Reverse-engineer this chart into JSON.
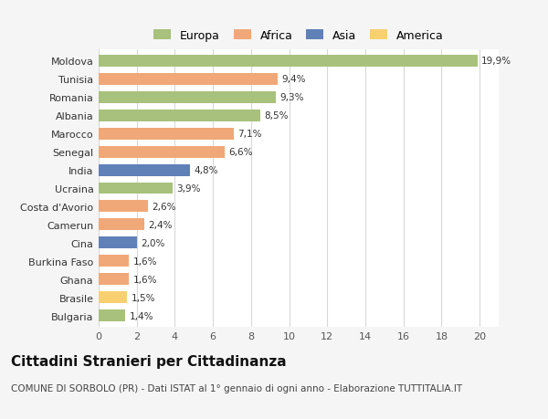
{
  "categories": [
    "Moldova",
    "Tunisia",
    "Romania",
    "Albania",
    "Marocco",
    "Senegal",
    "India",
    "Ucraina",
    "Costa d'Avorio",
    "Camerun",
    "Cina",
    "Burkina Faso",
    "Ghana",
    "Brasile",
    "Bulgaria"
  ],
  "values": [
    19.9,
    9.4,
    9.3,
    8.5,
    7.1,
    6.6,
    4.8,
    3.9,
    2.6,
    2.4,
    2.0,
    1.6,
    1.6,
    1.5,
    1.4
  ],
  "labels": [
    "19,9%",
    "9,4%",
    "9,3%",
    "8,5%",
    "7,1%",
    "6,6%",
    "4,8%",
    "3,9%",
    "2,6%",
    "2,4%",
    "2,0%",
    "1,6%",
    "1,6%",
    "1,5%",
    "1,4%"
  ],
  "colors": [
    "#a8c17c",
    "#f0a878",
    "#a8c17c",
    "#a8c17c",
    "#f0a878",
    "#f0a878",
    "#6080b8",
    "#a8c17c",
    "#f0a878",
    "#f0a878",
    "#6080b8",
    "#f0a878",
    "#f0a878",
    "#f8d070",
    "#a8c17c"
  ],
  "legend": {
    "Europa": "#a8c17c",
    "Africa": "#f0a878",
    "Asia": "#6080b8",
    "America": "#f8d070"
  },
  "xlim": [
    0,
    21
  ],
  "xticks": [
    0,
    2,
    4,
    6,
    8,
    10,
    12,
    14,
    16,
    18,
    20
  ],
  "title": "Cittadini Stranieri per Cittadinanza",
  "subtitle": "COMUNE DI SORBOLO (PR) - Dati ISTAT al 1° gennaio di ogni anno - Elaborazione TUTTITALIA.IT",
  "background_color": "#f5f5f5",
  "bar_background": "#ffffff",
  "grid_color": "#d8d8d8",
  "title_fontsize": 11,
  "subtitle_fontsize": 7.5,
  "label_fontsize": 7.5,
  "tick_fontsize": 8,
  "legend_fontsize": 9
}
